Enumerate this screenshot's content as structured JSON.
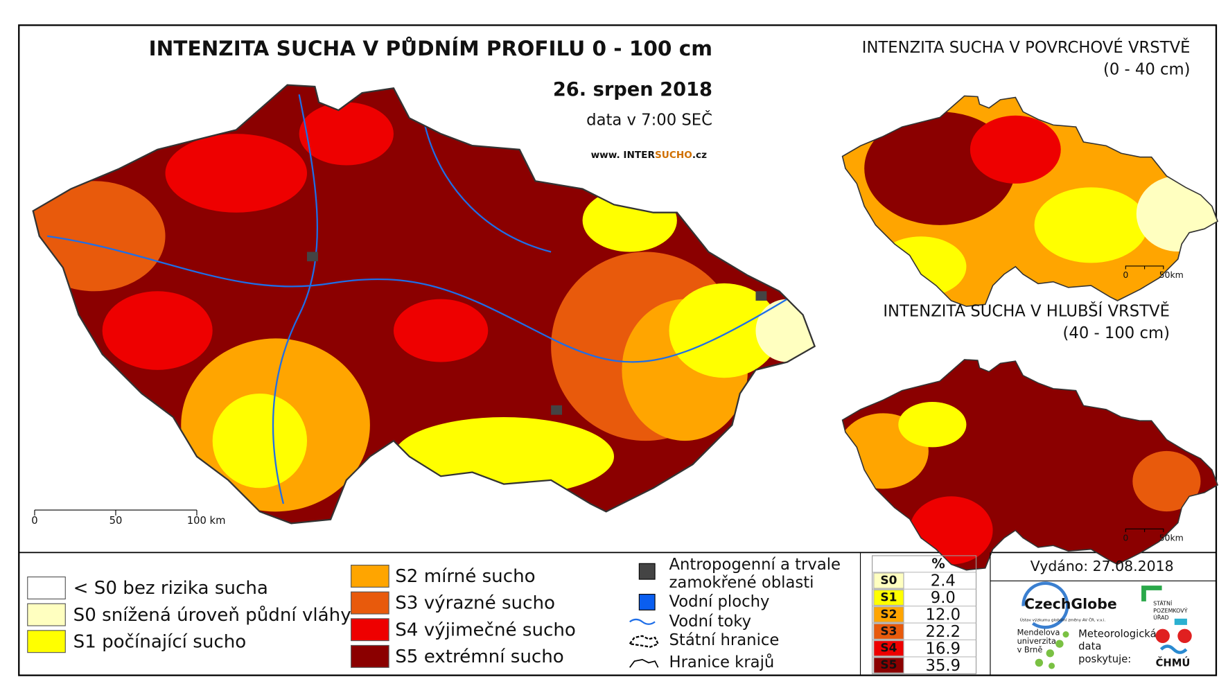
{
  "title": "INTENZITA SUCHA V PŮDNÍM PROFILU 0 - 100 cm",
  "date": "26. srpen 2018",
  "data_time": "data v 7:00 SEČ",
  "website": {
    "prefix": "www. INTER",
    "highlight": "SUCHO",
    "suffix": ".cz"
  },
  "main_scale": [
    "0",
    "50",
    "100 km"
  ],
  "inset_top": {
    "title": "INTENZITA SUCHA V POVRCHOVÉ VRSTVĚ",
    "subtitle": "(0 - 40 cm)",
    "scale": [
      "0",
      "50km"
    ]
  },
  "inset_bottom": {
    "title": "INTENZITA SUCHA V HLUBŠÍ VRSTVĚ",
    "subtitle": "(40 - 100 cm)",
    "scale": [
      "0",
      "50km"
    ]
  },
  "legend_classes": [
    {
      "label": "< S0 bez rizika sucha",
      "color": "#ffffff"
    },
    {
      "label": "S0 snížená úroveň půdní vláhy",
      "color": "#ffffc0"
    },
    {
      "label": "S1 počínající sucho",
      "color": "#ffff00"
    },
    {
      "label": "S2 mírné sucho",
      "color": "#ffa500"
    },
    {
      "label": "S3 výrazné sucho",
      "color": "#e85a0c"
    },
    {
      "label": "S4 výjimečné sucho",
      "color": "#ee0000"
    },
    {
      "label": "S5 extrémní sucho",
      "color": "#8b0000"
    }
  ],
  "legend_other": [
    "Antropogenní a trvale",
    "zamokřené oblasti",
    "Vodní plochy",
    "Vodní toky",
    "Státní hranice",
    "Hranice krajů"
  ],
  "table": {
    "header": "%",
    "rows": [
      [
        "S0",
        "2.4"
      ],
      [
        "S1",
        "9.0"
      ],
      [
        "S2",
        "12.0"
      ],
      [
        "S3",
        "22.2"
      ],
      [
        "S4",
        "16.9"
      ],
      [
        "S5",
        "35.9"
      ]
    ]
  },
  "issued": "Vydáno: 27.08.2018",
  "credits": {
    "czechglobe": "CzechGlobe",
    "czechglobe_sub": "Ústav výzkumu globální změny AV ČR, v.v.i.",
    "spu": [
      "STÁTNÍ",
      "POZEMKOVÝ",
      "ÚŘAD"
    ],
    "mendel": [
      "Mendelova",
      "univerzita",
      "v Brně"
    ],
    "chmu_text": [
      "Meteorologická",
      "data",
      "poskytuje:"
    ],
    "chmu": "ČHMÚ"
  }
}
